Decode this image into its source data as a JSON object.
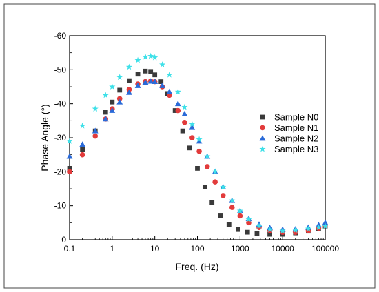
{
  "chart_data": {
    "type": "scatter",
    "title": "",
    "xlabel": "Freq. (Hz)",
    "ylabel": "Phase Angle (°)",
    "x_scale": "log",
    "xlim": [
      0.1,
      100000
    ],
    "ylim": [
      0,
      -60
    ],
    "y_inverted": true,
    "x_ticks": [
      "0.1",
      "1",
      "10",
      "100",
      "1000",
      "10000",
      "100000"
    ],
    "y_ticks": [
      "0",
      "-10",
      "-20",
      "-30",
      "-40",
      "-50",
      "-60"
    ],
    "grid": false,
    "legend_position": "right",
    "series": [
      {
        "name": "Sample N0",
        "marker": "square",
        "color": "#3a3a3a",
        "points": [
          [
            0.1,
            -21
          ],
          [
            0.2,
            -26.5
          ],
          [
            0.4,
            -32
          ],
          [
            0.7,
            -37.5
          ],
          [
            1,
            -40.5
          ],
          [
            1.5,
            -44
          ],
          [
            2.5,
            -46.8
          ],
          [
            4,
            -48.7
          ],
          [
            6,
            -49.6
          ],
          [
            8,
            -49.5
          ],
          [
            10,
            -48.5
          ],
          [
            14,
            -46.5
          ],
          [
            20,
            -43
          ],
          [
            30,
            -38
          ],
          [
            45,
            -32
          ],
          [
            65,
            -27
          ],
          [
            100,
            -21
          ],
          [
            150,
            -15.5
          ],
          [
            220,
            -11
          ],
          [
            350,
            -7
          ],
          [
            550,
            -4.5
          ],
          [
            900,
            -3
          ],
          [
            1500,
            -2.2
          ],
          [
            2500,
            -1.8
          ],
          [
            5000,
            -1.6
          ],
          [
            10000,
            -1.6
          ],
          [
            20000,
            -2
          ],
          [
            40000,
            -2.5
          ],
          [
            70000,
            -3.2
          ],
          [
            100000,
            -4
          ]
        ]
      },
      {
        "name": "Sample N1",
        "marker": "circle",
        "color": "#e23b3b",
        "points": [
          [
            0.1,
            -20
          ],
          [
            0.2,
            -25
          ],
          [
            0.4,
            -30.5
          ],
          [
            0.7,
            -35.5
          ],
          [
            1,
            -38.5
          ],
          [
            1.5,
            -41.5
          ],
          [
            2.5,
            -44.2
          ],
          [
            4,
            -45.8
          ],
          [
            6,
            -46.5
          ],
          [
            8,
            -46.7
          ],
          [
            10,
            -46.5
          ],
          [
            15,
            -45
          ],
          [
            22,
            -42.5
          ],
          [
            35,
            -38
          ],
          [
            50,
            -34.5
          ],
          [
            75,
            -30
          ],
          [
            110,
            -26
          ],
          [
            170,
            -21.5
          ],
          [
            260,
            -17
          ],
          [
            400,
            -13
          ],
          [
            650,
            -9.5
          ],
          [
            1000,
            -7
          ],
          [
            1600,
            -5
          ],
          [
            2800,
            -3.6
          ],
          [
            5000,
            -2.7
          ],
          [
            10000,
            -2.2
          ],
          [
            20000,
            -2.2
          ],
          [
            40000,
            -2.6
          ],
          [
            70000,
            -3.4
          ],
          [
            100000,
            -4.2
          ]
        ]
      },
      {
        "name": "Sample N2",
        "marker": "triangle",
        "color": "#2a6ad8",
        "points": [
          [
            0.1,
            -24.5
          ],
          [
            0.2,
            -28
          ],
          [
            0.4,
            -32
          ],
          [
            0.7,
            -35.5
          ],
          [
            1,
            -38
          ],
          [
            1.5,
            -40.5
          ],
          [
            2.5,
            -43.3
          ],
          [
            4,
            -45.3
          ],
          [
            6,
            -46.3
          ],
          [
            8,
            -46.6
          ],
          [
            10,
            -46.5
          ],
          [
            15,
            -45.3
          ],
          [
            22,
            -43.5
          ],
          [
            35,
            -40
          ],
          [
            50,
            -37
          ],
          [
            75,
            -33
          ],
          [
            110,
            -29
          ],
          [
            170,
            -24.5
          ],
          [
            260,
            -20
          ],
          [
            400,
            -15.5
          ],
          [
            650,
            -11.5
          ],
          [
            1000,
            -8.5
          ],
          [
            1600,
            -6.2
          ],
          [
            2800,
            -4.5
          ],
          [
            5000,
            -3.5
          ],
          [
            10000,
            -3
          ],
          [
            20000,
            -3.1
          ],
          [
            40000,
            -3.6
          ],
          [
            70000,
            -4.3
          ],
          [
            100000,
            -5
          ]
        ]
      },
      {
        "name": "Sample N3",
        "marker": "star",
        "color": "#3ee0e8",
        "points": [
          [
            0.1,
            -29
          ],
          [
            0.2,
            -33.5
          ],
          [
            0.4,
            -38.5
          ],
          [
            0.7,
            -42.5
          ],
          [
            1,
            -45
          ],
          [
            1.5,
            -47.8
          ],
          [
            2.5,
            -50.8
          ],
          [
            4,
            -52.8
          ],
          [
            6,
            -53.8
          ],
          [
            8,
            -54
          ],
          [
            10,
            -53.6
          ],
          [
            15,
            -51.5
          ],
          [
            22,
            -48.5
          ],
          [
            35,
            -43.5
          ],
          [
            50,
            -39
          ],
          [
            75,
            -34
          ],
          [
            110,
            -29.5
          ],
          [
            170,
            -24.5
          ],
          [
            260,
            -20
          ],
          [
            400,
            -15.5
          ],
          [
            650,
            -11.5
          ],
          [
            1000,
            -8.5
          ],
          [
            1600,
            -6
          ],
          [
            2800,
            -4
          ],
          [
            5000,
            -3
          ],
          [
            10000,
            -2.6
          ],
          [
            20000,
            -2.8
          ],
          [
            40000,
            -3.2
          ],
          [
            70000,
            -3.6
          ],
          [
            100000,
            -4
          ]
        ]
      }
    ]
  }
}
